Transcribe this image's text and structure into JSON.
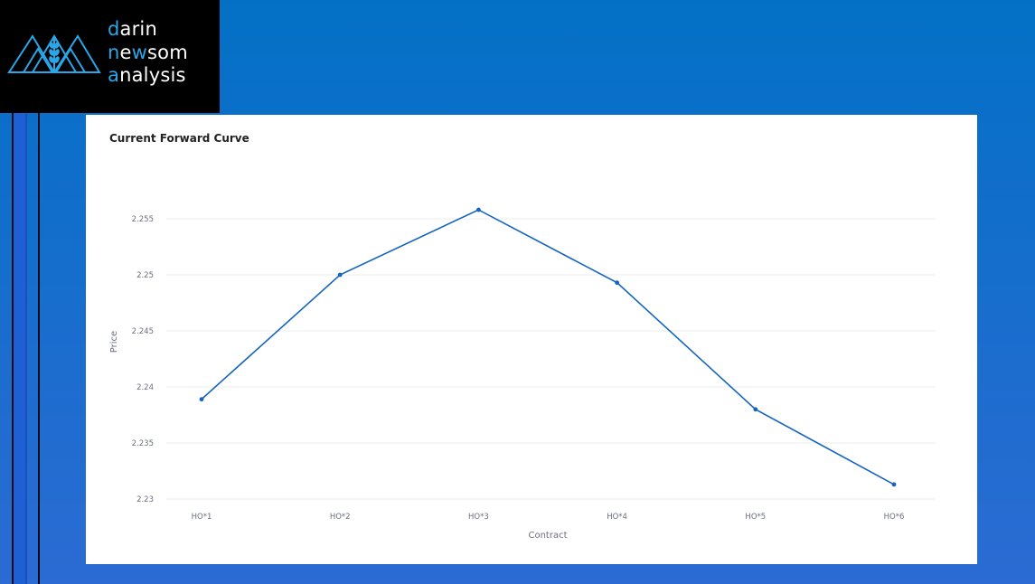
{
  "brand": {
    "lines": [
      {
        "accent": "d",
        "rest": "arin"
      },
      {
        "accent": "n",
        "rest": "e",
        "accent2": "w",
        "rest2": "som"
      },
      {
        "accent": "a",
        "rest": "nalysis"
      }
    ],
    "colors": {
      "accent": "#2aa7e8",
      "background": "#000000"
    }
  },
  "chart_data": {
    "type": "line",
    "title": "Current Forward Curve",
    "xlabel": "Contract",
    "ylabel": "Price",
    "categories": [
      "HO*1",
      "HO*2",
      "HO*3",
      "HO*4",
      "HO*5",
      "HO*6"
    ],
    "values": [
      2.2389,
      2.25,
      2.2558,
      2.2493,
      2.238,
      2.2313
    ],
    "ylim": [
      2.23,
      2.2575
    ],
    "yticks": [
      2.23,
      2.235,
      2.24,
      2.245,
      2.25,
      2.255
    ],
    "ytick_labels": [
      "2.23",
      "2.235",
      "2.24",
      "2.245",
      "2.25",
      "2.255"
    ],
    "grid": true,
    "line_color": "#1565c0",
    "legend": "none"
  }
}
